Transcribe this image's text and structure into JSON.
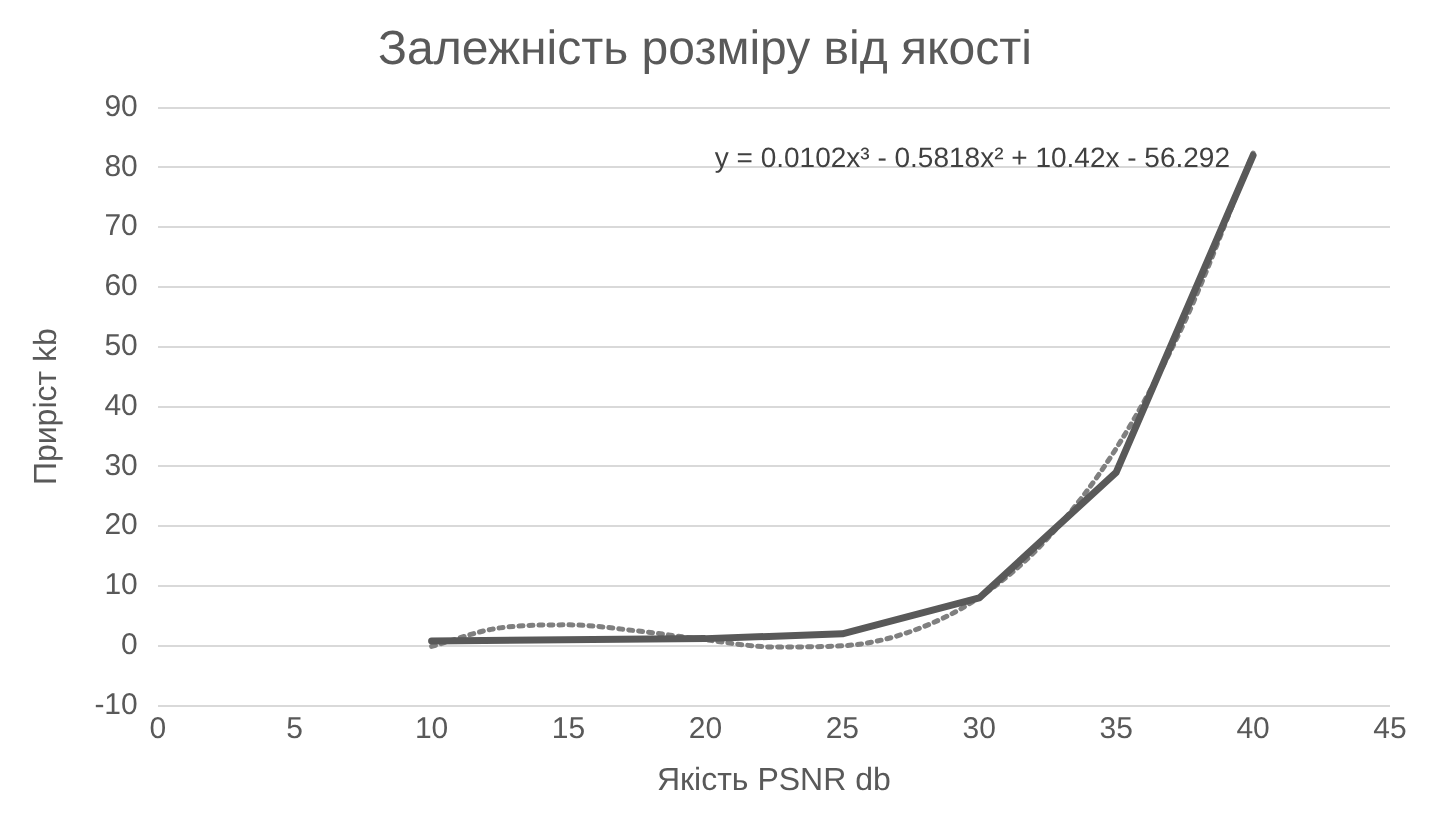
{
  "chart_data": {
    "type": "line",
    "title": "Залежність розміру від якості",
    "xlabel": "Якість PSNR db",
    "ylabel": "Приріст kb",
    "x": [
      10,
      20,
      25,
      30,
      35,
      40
    ],
    "series": [
      {
        "color": "#595959",
        "values": [
          0.8,
          1.2,
          2,
          8,
          29,
          82
        ],
        "line_style": "solid"
      },
      {
        "type": "line",
        "color": "#7f7f7f",
        "line_style": "dotted",
        "x": [
          10,
          12.5,
          15,
          17.5,
          20,
          22.5,
          25,
          27.5,
          30,
          32.5,
          35,
          37.5,
          40
        ],
        "values": [
          -0.1,
          3.0,
          3.5,
          2.5,
          1.0,
          -0.2,
          0.0,
          2.4,
          8.1,
          18.0,
          33.0,
          54.2,
          82.4
        ]
      }
    ],
    "xlim": [
      0,
      45
    ],
    "xticks": [
      0,
      5,
      10,
      15,
      20,
      25,
      30,
      35,
      40,
      45
    ],
    "ylim": [
      -10,
      90
    ],
    "yticks": [
      -10,
      0,
      10,
      20,
      30,
      40,
      50,
      60,
      70,
      80,
      90
    ],
    "grid": "y",
    "legend": false,
    "marker": "none",
    "annotations": [
      "y = 0.0102x³ - 0.5818x² + 10.42x - 56.292"
    ]
  }
}
